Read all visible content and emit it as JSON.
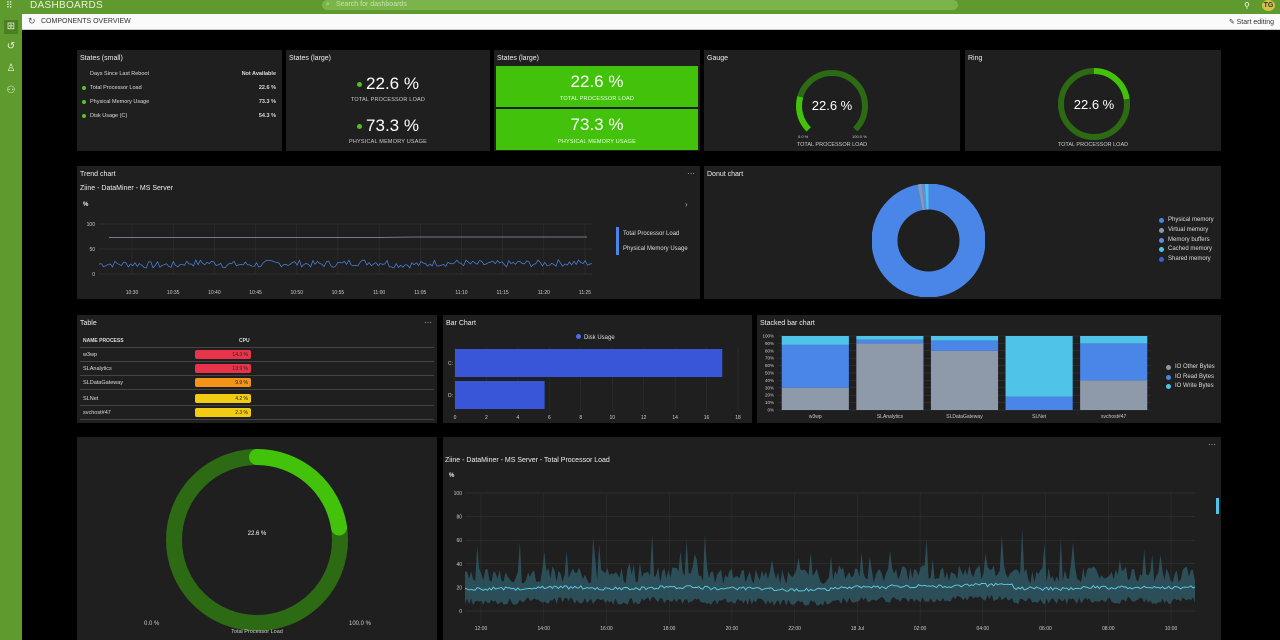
{
  "app": {
    "title": "DASHBOARDS",
    "search_placeholder": "Search for dashboards",
    "user_initials": "TG"
  },
  "subbar": {
    "breadcrumb": "COMPONENTS OVERVIEW",
    "edit_label": "Start editing"
  },
  "sidebar": {
    "icons": [
      "dashboards-icon",
      "history-icon",
      "users-icon",
      "shared-icon"
    ]
  },
  "states_small": {
    "title": "States (small)",
    "header_label": "Days Since Last Reboot",
    "header_value": "Not Available",
    "rows": [
      {
        "label": "Total Processor Load",
        "value": "22.6 %"
      },
      {
        "label": "Physical Memory Usage",
        "value": "73.3 %"
      },
      {
        "label": "Disk Usage (C)",
        "value": "54.3 %"
      }
    ]
  },
  "states_large_1": {
    "title": "States (large)",
    "items": [
      {
        "value": "22.6 %",
        "label": "TOTAL PROCESSOR LOAD"
      },
      {
        "value": "73.3 %",
        "label": "PHYSICAL MEMORY USAGE"
      }
    ]
  },
  "states_large_2": {
    "title": "States (large)",
    "items": [
      {
        "value": "22.6 %",
        "label": "TOTAL PROCESSOR LOAD"
      },
      {
        "value": "73.3 %",
        "label": "PHYSICAL MEMORY USAGE"
      }
    ]
  },
  "gauge": {
    "title": "Gauge",
    "value": "22.6 %",
    "min": "0.0 %",
    "max": "100.0 %",
    "label": "TOTAL PROCESSOR LOAD",
    "fraction": 0.226
  },
  "ring": {
    "title": "Ring",
    "value": "22.6 %",
    "label": "TOTAL PROCESSOR LOAD",
    "fraction": 0.226
  },
  "trend": {
    "title": "Trend chart",
    "subtitle": "Ziine - DataMiner - MS Server",
    "unit": "%",
    "yticks": [
      "100",
      "50",
      "0"
    ],
    "xticks": [
      "10:30",
      "10:35",
      "10:40",
      "10:45",
      "10:50",
      "10:55",
      "11:00",
      "11:05",
      "11:10",
      "11:15",
      "11:20",
      "11:25"
    ],
    "legend": [
      "Total Processor Load",
      "Physical Memory Usage"
    ]
  },
  "donut": {
    "title": "Donut chart",
    "legend": [
      {
        "label": "Physical memory",
        "color": "#4a86e8"
      },
      {
        "label": "Virtual memory",
        "color": "#8e99aa"
      },
      {
        "label": "Memory buffers",
        "color": "#5b8ee0"
      },
      {
        "label": "Cached memory",
        "color": "#4fc3e8"
      },
      {
        "label": "Shared memory",
        "color": "#3b5fd6"
      }
    ]
  },
  "table": {
    "title": "Table",
    "col_name": "NAME PROCESS",
    "col_cpu": "CPU",
    "rows": [
      {
        "name": "w3wp",
        "cpu": "14.3 %",
        "color": "#e8344a"
      },
      {
        "name": "SLAnalytics",
        "cpu": "13.9 %",
        "color": "#e8344a"
      },
      {
        "name": "SLDataGateway",
        "cpu": "9.9 %",
        "color": "#f39318"
      },
      {
        "name": "SLNet",
        "cpu": "4.2 %",
        "color": "#f2cc12"
      },
      {
        "name": "svchost#47",
        "cpu": "2.3 %",
        "color": "#f2cc12"
      }
    ]
  },
  "bar_chart": {
    "title": "Bar Chart",
    "legend": "Disk Usage",
    "categories": [
      "C:",
      "D:"
    ],
    "xticks": [
      "0",
      "2",
      "4",
      "6",
      "8",
      "10",
      "12",
      "14",
      "16",
      "18"
    ]
  },
  "stacked_chart": {
    "title": "Stacked bar chart",
    "yticks": [
      "100%",
      "90%",
      "80%",
      "70%",
      "60%",
      "50%",
      "40%",
      "30%",
      "20%",
      "10%",
      "0%"
    ],
    "legend": [
      {
        "label": "IO Other Bytes",
        "color": "#8e99aa"
      },
      {
        "label": "IO Read Bytes",
        "color": "#4a86e8"
      },
      {
        "label": "IO Write Bytes",
        "color": "#4fc3e8"
      }
    ]
  },
  "big_ring": {
    "value": "22.6 %",
    "min": "0.0 %",
    "max": "100.0 %",
    "label": "Total Processor Load",
    "fraction": 0.226
  },
  "line_chart": {
    "title": "Ziine - DataMiner - MS Server - Total Processor Load",
    "unit": "%",
    "yticks": [
      "100",
      "80",
      "60",
      "40",
      "20",
      "0"
    ],
    "xticks": [
      "12:00",
      "14:00",
      "16:00",
      "18:00",
      "20:00",
      "22:00",
      "18 Jul",
      "02:00",
      "04:00",
      "06:00",
      "08:00",
      "10:00"
    ]
  },
  "chart_data": [
    {
      "type": "line",
      "title": "Trend chart",
      "ylabel": "%",
      "ylim": [
        0,
        100
      ],
      "x": [
        "10:30",
        "10:35",
        "10:40",
        "10:45",
        "10:50",
        "10:55",
        "11:00",
        "11:05",
        "11:10",
        "11:15",
        "11:20",
        "11:25"
      ],
      "series": [
        {
          "name": "Total Processor Load",
          "values": [
            20,
            18,
            22,
            19,
            21,
            20,
            23,
            19,
            22,
            20,
            21,
            22
          ]
        },
        {
          "name": "Physical Memory Usage",
          "values": [
            73,
            73,
            73,
            73,
            73,
            73,
            73,
            74,
            74,
            74,
            74,
            74
          ]
        }
      ]
    },
    {
      "type": "pie",
      "title": "Donut chart",
      "categories": [
        "Physical memory",
        "Virtual memory",
        "Memory buffers",
        "Cached memory",
        "Shared memory"
      ],
      "values": [
        97,
        1,
        1,
        1,
        0
      ]
    },
    {
      "type": "bar",
      "title": "Bar Chart",
      "categories": [
        "C:",
        "D:"
      ],
      "series": [
        {
          "name": "Disk Usage",
          "values": [
            17,
            5.7
          ]
        }
      ],
      "xlim": [
        0,
        18
      ]
    },
    {
      "type": "bar",
      "title": "Stacked bar chart",
      "categories": [
        "w3wp",
        "SLAnalytics",
        "SLDataGateway",
        "SLNet",
        "svchost#47"
      ],
      "series": [
        {
          "name": "IO Other Bytes",
          "values": [
            30,
            90,
            80,
            0,
            40
          ]
        },
        {
          "name": "IO Read Bytes",
          "values": [
            58,
            5,
            14,
            18,
            50
          ]
        },
        {
          "name": "IO Write Bytes",
          "values": [
            12,
            5,
            6,
            82,
            10
          ]
        }
      ]
    },
    {
      "type": "line",
      "title": "Ziine - DataMiner - MS Server - Total Processor Load",
      "ylabel": "%",
      "ylim": [
        0,
        100
      ],
      "x": [
        "12:00",
        "14:00",
        "16:00",
        "18:00",
        "20:00",
        "22:00",
        "18 Jul",
        "02:00",
        "04:00",
        "06:00",
        "08:00",
        "10:00"
      ],
      "series": [
        {
          "values": [
            19,
            20,
            19,
            20,
            19,
            18,
            20,
            21,
            22,
            19,
            20,
            20
          ]
        }
      ]
    }
  ]
}
